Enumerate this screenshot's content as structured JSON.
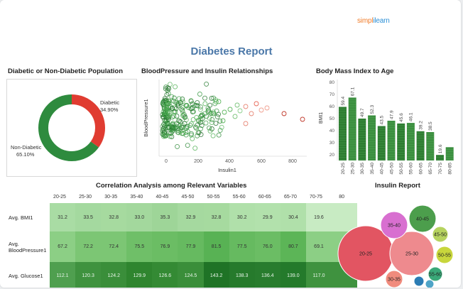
{
  "brand": {
    "part1": "simpl",
    "part2": "ilearn"
  },
  "report_title": "Diabetes Report",
  "donut": {
    "title": "Diabetic or Non-Diabetic Population",
    "colors": {
      "diabetic": "#e03c31",
      "non_diabetic": "#2e8b3e"
    },
    "chart_data": {
      "type": "pie",
      "categories": [
        "Diabetic",
        "Non-Diabetic"
      ],
      "values": [
        34.9,
        65.1
      ],
      "labels": [
        "34.90%",
        "65.10%"
      ]
    }
  },
  "scatter": {
    "title": "BloodPressure and Insulin Relationships",
    "xlabel": "Insulin1",
    "ylabel": "BloodPressure1",
    "xticks": [
      "0",
      "200",
      "400",
      "600",
      "800"
    ],
    "chart_data": {
      "type": "scatter",
      "xlim": [
        -40,
        860
      ],
      "xlabel": "Insulin1",
      "ylabel": "BloodPressure1"
    }
  },
  "bmi_age": {
    "title": "Body Mass Index to Age",
    "ylabel": "BMI1",
    "yticks": [
      "20",
      "30",
      "40",
      "50",
      "60",
      "70",
      "80"
    ],
    "chart_data": {
      "type": "bar",
      "categories": [
        "20-25",
        "25-30",
        "30-35",
        "35-40",
        "40-45",
        "45-50",
        "50-55",
        "55-60",
        "60-65",
        "65-70",
        "70-75",
        "80-85"
      ],
      "values": [
        59.4,
        67.1,
        49.7,
        52.3,
        43.5,
        47.9,
        45.6,
        46.1,
        39.2,
        38.5,
        19.6,
        null
      ],
      "labels": [
        "59.4",
        "67.1",
        "49.7",
        "52.3",
        "43.5",
        "47.9",
        "45.6",
        "46.1",
        "39.2",
        "38.5",
        "19.6",
        ""
      ],
      "ylim": [
        15,
        82
      ]
    }
  },
  "corr": {
    "title": "Correlation Analysis among Relevant Variables",
    "columns": [
      "20-25",
      "25-30",
      "30-35",
      "35-40",
      "40-45",
      "45-50",
      "50-55",
      "55-60",
      "60-65",
      "65-70",
      "70-75",
      "80"
    ],
    "rows": [
      {
        "label": "Avg. BMI1",
        "values": [
          "31.2",
          "33.5",
          "32.8",
          "33.0",
          "35.3",
          "32.9",
          "32.8",
          "30.2",
          "29.9",
          "30.4",
          "19.6",
          ""
        ]
      },
      {
        "label": "Avg. BloodPressure1",
        "values": [
          "67.2",
          "72.2",
          "72.4",
          "75.5",
          "76.9",
          "77.9",
          "81.5",
          "77.5",
          "76.0",
          "80.7",
          "69.1",
          ""
        ]
      },
      {
        "label": "Avg. Glucose1",
        "values": [
          "112.1",
          "120.3",
          "124.2",
          "129.9",
          "126.6",
          "124.5",
          "143.2",
          "138.3",
          "136.4",
          "139.0",
          "117.0",
          ""
        ]
      }
    ]
  },
  "insulin": {
    "title": "Insulin Report",
    "bubbles": [
      {
        "label": "20-25",
        "color": "#e25562"
      },
      {
        "label": "25-30",
        "color": "#ee8a8e"
      },
      {
        "label": "35-40",
        "color": "#d86fd0"
      },
      {
        "label": "40-45",
        "color": "#4c9e4c"
      },
      {
        "label": "45-50",
        "color": "#b6d35f"
      },
      {
        "label": "50-55",
        "color": "#c8d63c"
      },
      {
        "label": "55-60",
        "color": "#3aa878"
      },
      {
        "label": "30-35",
        "color": "#f08b7d"
      },
      {
        "label": "",
        "color": "#2b7cb4"
      },
      {
        "label": "",
        "color": "#4fa4c7"
      }
    ]
  }
}
